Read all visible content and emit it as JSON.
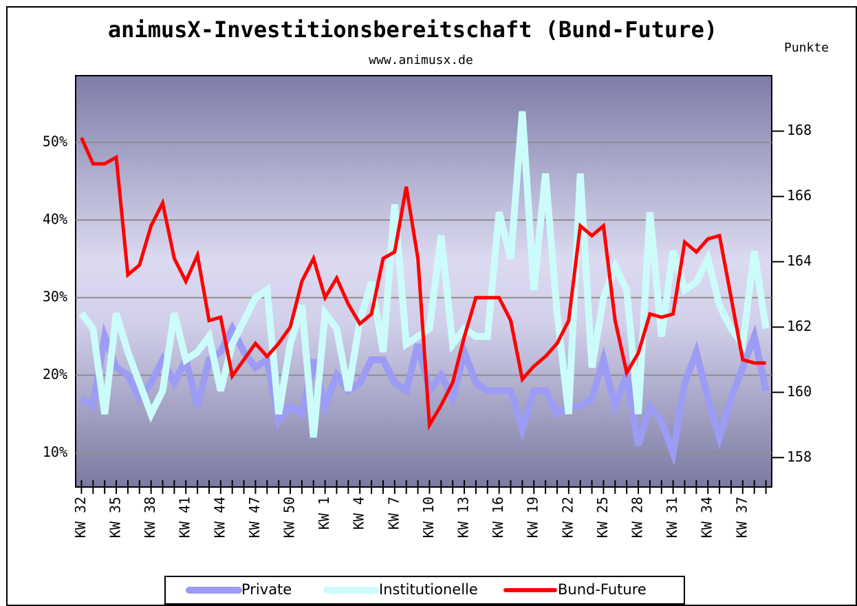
{
  "chart_data": {
    "type": "line",
    "title": "animusX-Investitionsbereitschaft (Bund-Future)",
    "subtitle": "www.animusx.de",
    "y2_label": "Punkte",
    "categories": [
      "KW 32",
      null,
      null,
      "KW 35",
      null,
      null,
      "KW 38",
      null,
      null,
      "KW 41",
      null,
      null,
      "KW 44",
      null,
      null,
      "KW 47",
      null,
      null,
      "KW 50",
      null,
      null,
      "KW 1",
      null,
      null,
      "KW 4",
      null,
      null,
      "KW 7",
      null,
      null,
      "KW 10",
      null,
      null,
      "KW 13",
      null,
      null,
      "KW 16",
      null,
      null,
      "KW 19",
      null,
      null,
      "KW 22",
      null,
      null,
      "KW 25",
      null,
      null,
      "KW 28",
      null,
      null,
      "KW 31",
      null,
      null,
      "KW 34",
      null,
      null,
      "KW 37",
      null,
      null
    ],
    "series": [
      {
        "name": "Private",
        "color": "#9c9cf4",
        "values": [
          17,
          16,
          25,
          21,
          20,
          17,
          19,
          22,
          19,
          22,
          16,
          22,
          23,
          26,
          23,
          21,
          22,
          14,
          16,
          15,
          22,
          16,
          20,
          18,
          19,
          22,
          22,
          19,
          18,
          24,
          18,
          20,
          17,
          23,
          19,
          18,
          18,
          18,
          13,
          18,
          18,
          15,
          16,
          16,
          17,
          22,
          16,
          20,
          11,
          16,
          14,
          10,
          19,
          23,
          17,
          12,
          17,
          21,
          25,
          18
        ]
      },
      {
        "name": "Institutionelle",
        "color": "#ccfcfa",
        "values": [
          28,
          26,
          15,
          28,
          23,
          19,
          15,
          18,
          28,
          22,
          23,
          25,
          18,
          24,
          27,
          30,
          31,
          15,
          24,
          29,
          12,
          28,
          26,
          18,
          27,
          32,
          23,
          42,
          24,
          25,
          26,
          38,
          24,
          26,
          25,
          25,
          41,
          35,
          54,
          31,
          46,
          28,
          15,
          46,
          21,
          30,
          34,
          31,
          15,
          41,
          25,
          36,
          31,
          32,
          35,
          29,
          26,
          24,
          36,
          26
        ]
      },
      {
        "name": "Bund-Future",
        "color": "#ff0000",
        "axis": "y2",
        "values": [
          167.8,
          167.0,
          167.0,
          167.2,
          163.6,
          163.9,
          165.1,
          165.8,
          164.1,
          163.4,
          164.2,
          162.2,
          162.3,
          160.5,
          161.0,
          161.5,
          161.1,
          161.5,
          162.0,
          163.4,
          164.1,
          162.9,
          163.5,
          162.7,
          162.1,
          162.4,
          164.1,
          164.3,
          166.3,
          164.1,
          159.0,
          159.6,
          160.3,
          161.7,
          162.9,
          162.9,
          162.9,
          162.2,
          160.4,
          160.8,
          161.1,
          161.5,
          162.2,
          165.1,
          164.8,
          165.1,
          162.2,
          160.6,
          161.2,
          162.4,
          162.3,
          162.4,
          164.6,
          164.3,
          164.7,
          164.8,
          162.9,
          161.0,
          160.9,
          160.9
        ]
      }
    ],
    "ylim": [
      5.6,
      58.6
    ],
    "yticks": [
      {
        "value": 10,
        "label": "10%"
      },
      {
        "value": 20,
        "label": "20%"
      },
      {
        "value": 30,
        "label": "30%"
      },
      {
        "value": 40,
        "label": "40%"
      },
      {
        "value": 50,
        "label": "50%"
      }
    ],
    "y2lim": [
      157.1,
      169.7
    ],
    "y2ticks": [
      158,
      160,
      162,
      164,
      166,
      168
    ],
    "grid": true,
    "legend": "bottom"
  }
}
